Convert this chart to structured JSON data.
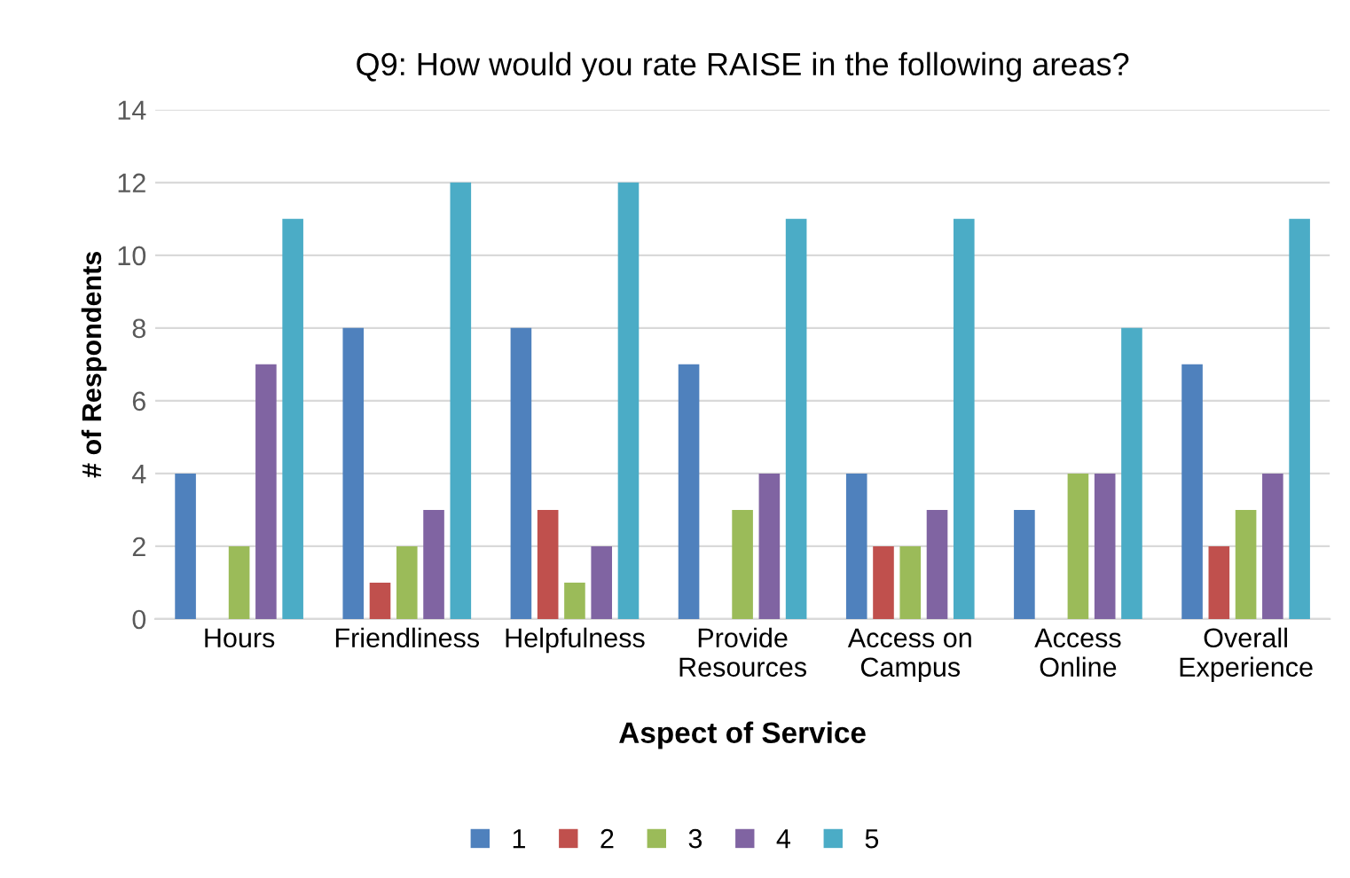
{
  "chart_data": {
    "type": "bar",
    "title": "Q9: How would you rate RAISE in the following areas?",
    "xlabel": "Aspect of Service",
    "ylabel": "# of Respondents",
    "categories": [
      "Hours",
      "Friendliness",
      "Helpfulness",
      "Provide\nResources",
      "Access on\nCampus",
      "Access\nOnline",
      "Overall\nExperience"
    ],
    "series": [
      {
        "name": "1",
        "color": "#4f81bd",
        "values": [
          4,
          8,
          8,
          7,
          4,
          3,
          7
        ]
      },
      {
        "name": "2",
        "color": "#c0504d",
        "values": [
          0,
          1,
          3,
          0,
          2,
          0,
          2
        ]
      },
      {
        "name": "3",
        "color": "#9bbb59",
        "values": [
          2,
          2,
          1,
          3,
          2,
          4,
          3
        ]
      },
      {
        "name": "4",
        "color": "#8064a2",
        "values": [
          7,
          3,
          2,
          4,
          3,
          4,
          4
        ]
      },
      {
        "name": "5",
        "color": "#4bacc6",
        "values": [
          11,
          12,
          12,
          11,
          11,
          8,
          11
        ]
      }
    ],
    "ylim": [
      0,
      14
    ],
    "yticks": [
      0,
      2,
      4,
      6,
      8,
      10,
      12,
      14
    ],
    "grid": "y",
    "legend": "bottom"
  }
}
